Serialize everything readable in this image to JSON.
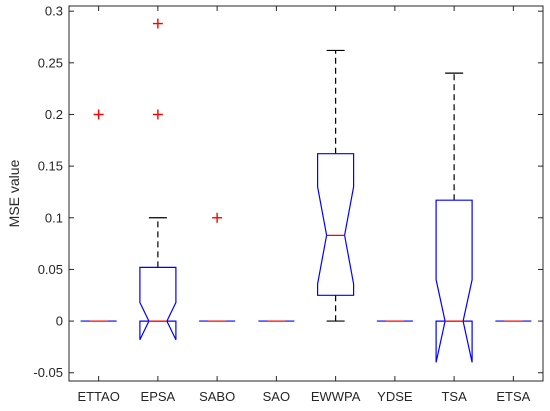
{
  "chart_data": {
    "type": "boxplot",
    "title": "",
    "xlabel": "",
    "ylabel": "MSE value",
    "ylim": [
      -0.058,
      0.305
    ],
    "yticks": [
      -0.05,
      0,
      0.05,
      0.1,
      0.15,
      0.2,
      0.25,
      0.3
    ],
    "ytick_labels": [
      "-0.05",
      "0",
      "0.05",
      "0.1",
      "0.15",
      "0.2",
      "0.25",
      "0.3"
    ],
    "grid": false,
    "notched": true,
    "categories": [
      "ETTAO",
      "EPSA",
      "SABO",
      "SAO",
      "EWWPA",
      "YDSE",
      "TSA",
      "ETSA"
    ],
    "boxes": [
      {
        "name": "ETTAO",
        "q1": 0,
        "median": 0,
        "q3": 0,
        "whisker_low": 0,
        "whisker_high": 0,
        "notch_low": 0,
        "notch_high": 0,
        "outliers": [
          0.2
        ]
      },
      {
        "name": "EPSA",
        "q1": 0,
        "median": 0,
        "q3": 0.052,
        "whisker_low": 0,
        "whisker_high": 0.1,
        "notch_low": -0.018,
        "notch_high": 0.018,
        "outliers": [
          0.2,
          0.288
        ]
      },
      {
        "name": "SABO",
        "q1": 0,
        "median": 0,
        "q3": 0,
        "whisker_low": 0,
        "whisker_high": 0,
        "notch_low": 0,
        "notch_high": 0,
        "outliers": [
          0.1
        ]
      },
      {
        "name": "SAO",
        "q1": 0,
        "median": 0,
        "q3": 0,
        "whisker_low": 0,
        "whisker_high": 0,
        "notch_low": 0,
        "notch_high": 0,
        "outliers": []
      },
      {
        "name": "EWWPA",
        "q1": 0.025,
        "median": 0.083,
        "q3": 0.162,
        "whisker_low": 0,
        "whisker_high": 0.262,
        "notch_low": 0.036,
        "notch_high": 0.13,
        "outliers": []
      },
      {
        "name": "YDSE",
        "q1": 0,
        "median": 0,
        "q3": 0,
        "whisker_low": 0,
        "whisker_high": 0,
        "notch_low": 0,
        "notch_high": 0,
        "outliers": []
      },
      {
        "name": "TSA",
        "q1": 0,
        "median": 0,
        "q3": 0.117,
        "whisker_low": 0,
        "whisker_high": 0.24,
        "notch_low": -0.04,
        "notch_high": 0.04,
        "outliers": []
      },
      {
        "name": "ETSA",
        "q1": 0,
        "median": 0,
        "q3": 0,
        "whisker_low": 0,
        "whisker_high": 0,
        "notch_low": 0,
        "notch_high": 0,
        "outliers": []
      }
    ],
    "colors": {
      "box": "#0000ff",
      "median": "#ff0000",
      "whisker": "#000000",
      "outlier": "#ff0000",
      "axis": "#262626"
    }
  }
}
